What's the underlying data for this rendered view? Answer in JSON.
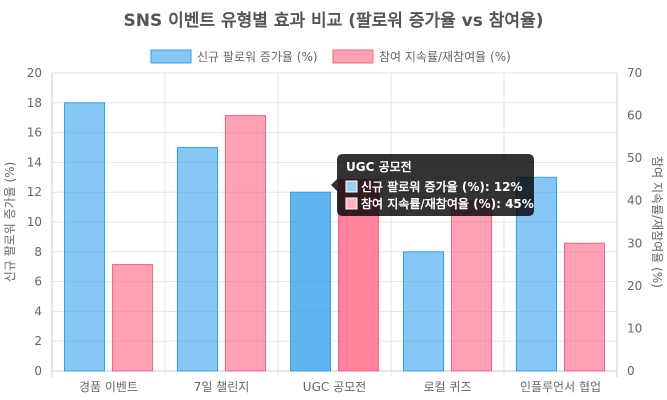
{
  "chart_data": {
    "type": "bar",
    "title": "SNS 이벤트 유형별 효과 비교 (팔로워 증가율 vs 참여율)",
    "categories": [
      "경품 이벤트",
      "7일 챌린지",
      "UGC 공모전",
      "로컬 퀴즈",
      "인플루언서 협업"
    ],
    "series": [
      {
        "name": "신규 팔로워 증가율 (%)",
        "axis": "left",
        "color": "#36A2EB",
        "values": [
          18,
          15,
          12,
          8,
          13
        ]
      },
      {
        "name": "참여 지속률/재참여율 (%)",
        "axis": "right",
        "color": "#FF6384",
        "values": [
          25,
          60,
          45,
          40,
          30
        ]
      }
    ],
    "y_left": {
      "label": "신규 팔로워 증가율 (%)",
      "ylim": [
        0,
        20
      ],
      "ticks": [
        0,
        2,
        4,
        6,
        8,
        10,
        12,
        14,
        16,
        18,
        20
      ]
    },
    "y_right": {
      "label": "참여 지속률/재참여율 (%)",
      "ylim": [
        0,
        70
      ],
      "ticks": [
        0,
        10,
        20,
        30,
        40,
        50,
        60,
        70
      ]
    },
    "legend_position": "top",
    "grid": true,
    "tooltip": {
      "title": "UGC 공모전",
      "lines": [
        "신규 팔로워 증가율 (%): 12%",
        "참여 지속률/재참여율 (%): 45%"
      ]
    }
  }
}
